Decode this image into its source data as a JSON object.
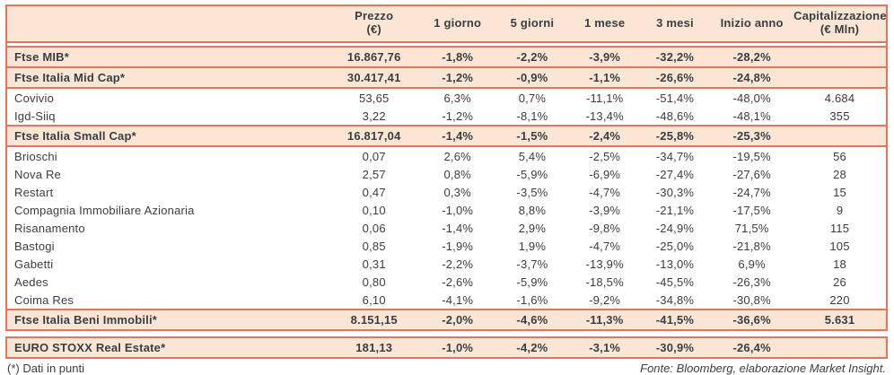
{
  "colors": {
    "accent_border": "#e7735b",
    "row_highlight": "#fbe6d5",
    "text": "#3a3e42"
  },
  "header": {
    "prezzo_line1": "Prezzo",
    "prezzo_line2": "(€)",
    "giorno1": "1 giorno",
    "giorni5": "5 giorni",
    "mese1": "1 mese",
    "mesi3": "3 mesi",
    "inizio_anno": "Inizio anno",
    "cap_line1": "Capitalizzazione",
    "cap_line2": "(€ Mln)"
  },
  "rows": [
    {
      "name": "Ftse MIB*",
      "type": "index",
      "values": [
        "16.867,76",
        "-1,8%",
        "-2,2%",
        "-3,9%",
        "-32,2%",
        "-28,2%",
        ""
      ]
    },
    {
      "name": "Ftse Italia Mid Cap*",
      "type": "index",
      "values": [
        "30.417,41",
        "-1,2%",
        "-0,9%",
        "-1,1%",
        "-26,6%",
        "-24,8%",
        ""
      ]
    },
    {
      "name": "Covivio",
      "type": "stock",
      "values": [
        "53,65",
        "6,3%",
        "0,7%",
        "-11,1%",
        "-51,4%",
        "-48,0%",
        "4.684"
      ]
    },
    {
      "name": "Igd-Siiq",
      "type": "stock",
      "values": [
        "3,22",
        "-1,2%",
        "-8,1%",
        "-13,4%",
        "-48,6%",
        "-48,1%",
        "355"
      ]
    },
    {
      "name": "Ftse Italia Small Cap*",
      "type": "index",
      "values": [
        "16.817,04",
        "-1,4%",
        "-1,5%",
        "-2,4%",
        "-25,8%",
        "-25,3%",
        ""
      ]
    },
    {
      "name": "Brioschi",
      "type": "stock",
      "values": [
        "0,07",
        "2,6%",
        "5,4%",
        "-2,5%",
        "-34,7%",
        "-19,5%",
        "56"
      ]
    },
    {
      "name": "Nova Re",
      "type": "stock",
      "values": [
        "2,57",
        "0,8%",
        "-5,9%",
        "-6,9%",
        "-27,4%",
        "-27,6%",
        "28"
      ]
    },
    {
      "name": "Restart",
      "type": "stock",
      "values": [
        "0,47",
        "0,3%",
        "-3,5%",
        "-4,7%",
        "-30,3%",
        "-24,7%",
        "15"
      ]
    },
    {
      "name": "Compagnia Immobiliare Azionaria",
      "type": "stock",
      "values": [
        "0,10",
        "-1,0%",
        "8,8%",
        "-3,9%",
        "-21,1%",
        "-17,5%",
        "9"
      ]
    },
    {
      "name": "Risanamento",
      "type": "stock",
      "values": [
        "0,06",
        "-1,4%",
        "2,9%",
        "-9,8%",
        "-24,9%",
        "71,5%",
        "115"
      ]
    },
    {
      "name": "Bastogi",
      "type": "stock",
      "values": [
        "0,85",
        "-1,9%",
        "1,9%",
        "-4,7%",
        "-25,0%",
        "-21,8%",
        "105"
      ]
    },
    {
      "name": "Gabetti",
      "type": "stock",
      "values": [
        "0,31",
        "-2,2%",
        "-3,7%",
        "-13,9%",
        "-13,0%",
        "6,9%",
        "18"
      ]
    },
    {
      "name": "Aedes",
      "type": "stock",
      "values": [
        "0,80",
        "-2,6%",
        "-5,9%",
        "-18,5%",
        "-45,5%",
        "-26,3%",
        "26"
      ]
    },
    {
      "name": "Coima Res",
      "type": "stock",
      "values": [
        "6,10",
        "-4,1%",
        "-1,6%",
        "-9,2%",
        "-34,8%",
        "-30,8%",
        "220"
      ]
    },
    {
      "name": "Ftse Italia Beni Immobili*",
      "type": "index",
      "values": [
        "8.151,15",
        "-2,0%",
        "-4,6%",
        "-11,3%",
        "-41,5%",
        "-36,6%",
        "5.631"
      ]
    },
    {
      "name": "EURO STOXX Real Estate*",
      "type": "index",
      "values": [
        "181,13",
        "-1,0%",
        "-4,2%",
        "-3,1%",
        "-30,9%",
        "-26,4%",
        ""
      ]
    }
  ],
  "footer": {
    "note": "(*) Dati in punti",
    "source": "Fonte: Bloomberg, elaborazione Market Insight."
  }
}
